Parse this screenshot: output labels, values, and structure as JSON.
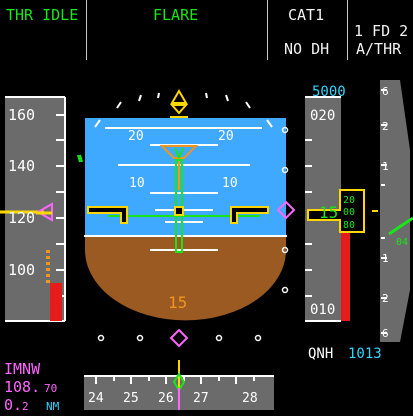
{
  "fma": {
    "col1": "THR IDLE",
    "col2": "FLARE",
    "col4_line1": "CAT1",
    "col4_line2": "NO DH",
    "col5_line1": "1 FD 2",
    "col5_line2": "A/THR"
  },
  "speed_tape": {
    "ticks": [
      "160",
      "140",
      "120",
      "100"
    ],
    "current_speed_color": "#ffd700"
  },
  "attitude": {
    "pitch_labels_top": [
      "20",
      "20"
    ],
    "pitch_labels_mid": [
      "10",
      "10"
    ],
    "radio_altitude": "15",
    "sky_color": "#3fa8ff",
    "ground_color": "#9b5a22"
  },
  "altitude_tape": {
    "selected_altitude": "5000",
    "ticks_top": "020",
    "ticks_bottom": "010",
    "readout_big": "15",
    "readout_drum": [
      "20",
      "00",
      "80"
    ],
    "qnh_label": "QNH",
    "qnh_value": "1013"
  },
  "vsi": {
    "ticks_top": [
      "6",
      "2",
      "1"
    ],
    "ticks_bottom": [
      "1",
      "2",
      "6"
    ],
    "vs_value": "04"
  },
  "ils": {
    "ident": "IMNW",
    "freq_big": "108.",
    "freq_small": "70",
    "dme_big": "0.",
    "dme_small": "2",
    "dme_unit": "NM"
  },
  "heading_tape": {
    "labels": [
      "24",
      "25",
      "26",
      "27",
      "28"
    ]
  }
}
